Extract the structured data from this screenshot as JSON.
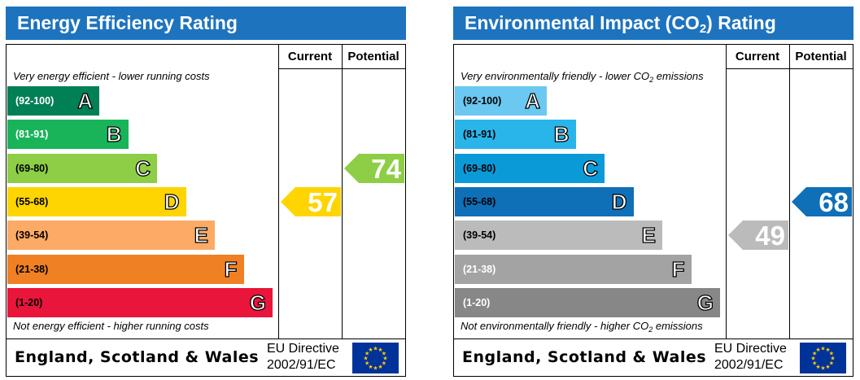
{
  "charts": [
    {
      "title_main": "Energy Efficiency Rating",
      "title_sub": "",
      "title_tail": "",
      "col_current": "Current",
      "col_potential": "Potential",
      "top_note": "Very energy efficient - lower running costs",
      "top_note_sub": "",
      "top_note_tail": "",
      "bottom_note": "Not energy efficient - higher running costs",
      "bottom_note_sub": "",
      "bottom_note_tail": "",
      "region": "England, Scotland & Wales",
      "directive_line1": "EU Directive",
      "directive_line2": "2002/91/EC",
      "bands": [
        {
          "range": "(92-100)",
          "letter": "A",
          "color": "#008054",
          "text_color": "#ffffff"
        },
        {
          "range": "(81-91)",
          "letter": "B",
          "color": "#19b459",
          "text_color": "#ffffff"
        },
        {
          "range": "(69-80)",
          "letter": "C",
          "color": "#8dce46",
          "text_color": "#000000"
        },
        {
          "range": "(55-68)",
          "letter": "D",
          "color": "#ffd500",
          "text_color": "#000000"
        },
        {
          "range": "(39-54)",
          "letter": "E",
          "color": "#fcaa65",
          "text_color": "#000000"
        },
        {
          "range": "(21-38)",
          "letter": "F",
          "color": "#ef8023",
          "text_color": "#000000"
        },
        {
          "range": "(1-20)",
          "letter": "G",
          "color": "#e9153b",
          "text_color": "#000000"
        }
      ],
      "current": {
        "value": "57",
        "band": "D",
        "color": "#ffd500"
      },
      "potential": {
        "value": "74",
        "band": "C",
        "color": "#8dce46"
      }
    },
    {
      "title_main": "Environmental Impact (CO",
      "title_sub": "2",
      "title_tail": ") Rating",
      "col_current": "Current",
      "col_potential": "Potential",
      "top_note": "Very environmentally friendly - lower CO",
      "top_note_sub": "2",
      "top_note_tail": " emissions",
      "bottom_note": "Not environmentally friendly - higher CO",
      "bottom_note_sub": "2",
      "bottom_note_tail": " emissions",
      "region": "England, Scotland & Wales",
      "directive_line1": "EU Directive",
      "directive_line2": "2002/91/EC",
      "bands": [
        {
          "range": "(92-100)",
          "letter": "A",
          "color": "#6bc8f0",
          "text_color": "#000000"
        },
        {
          "range": "(81-91)",
          "letter": "B",
          "color": "#29b4ea",
          "text_color": "#000000"
        },
        {
          "range": "(69-80)",
          "letter": "C",
          "color": "#0b9ad8",
          "text_color": "#000000"
        },
        {
          "range": "(55-68)",
          "letter": "D",
          "color": "#0f6fb7",
          "text_color": "#000000"
        },
        {
          "range": "(39-54)",
          "letter": "E",
          "color": "#bbbbbb",
          "text_color": "#000000"
        },
        {
          "range": "(21-38)",
          "letter": "F",
          "color": "#a3a3a3",
          "text_color": "#ffffff"
        },
        {
          "range": "(1-20)",
          "letter": "G",
          "color": "#878787",
          "text_color": "#ffffff"
        }
      ],
      "current": {
        "value": "49",
        "band": "E",
        "color": "#bbbbbb"
      },
      "potential": {
        "value": "68",
        "band": "D",
        "color": "#0f6fb7"
      }
    }
  ]
}
